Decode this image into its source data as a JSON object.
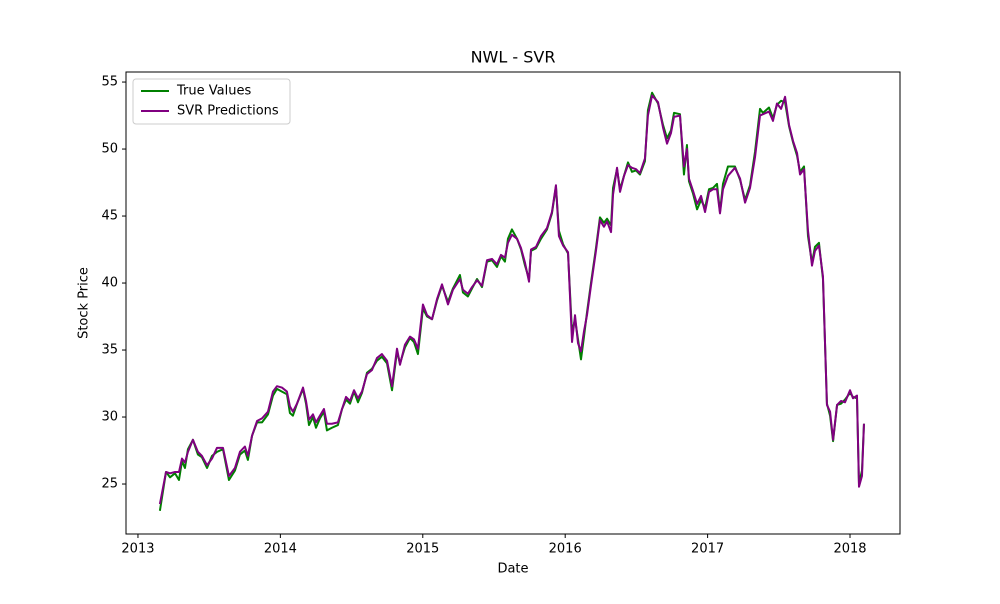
{
  "chart_data": {
    "type": "line",
    "title": "NWL - SVR",
    "x_label": "Date",
    "y_label": "Stock Price",
    "x": [
      2013.154,
      2013.197,
      2013.225,
      2013.26,
      2013.288,
      2013.309,
      2013.33,
      2013.351,
      2013.386,
      2013.421,
      2013.449,
      2013.485,
      2013.52,
      2013.555,
      2013.597,
      2013.639,
      2013.681,
      2013.716,
      2013.751,
      2013.772,
      2013.801,
      2013.836,
      2013.871,
      2013.913,
      2013.948,
      2013.976,
      2014.011,
      2014.046,
      2014.067,
      2014.088,
      2014.117,
      2014.159,
      2014.18,
      2014.201,
      2014.229,
      2014.25,
      2014.278,
      2014.306,
      2014.327,
      2014.362,
      2014.404,
      2014.433,
      2014.461,
      2014.489,
      2014.517,
      2014.545,
      2014.573,
      2014.608,
      2014.643,
      2014.678,
      2014.713,
      2014.749,
      2014.784,
      2014.819,
      2014.84,
      2014.875,
      2014.91,
      2014.938,
      2014.966,
      2015.001,
      2015.03,
      2015.065,
      2015.1,
      2015.135,
      2015.177,
      2015.212,
      2015.261,
      2015.282,
      2015.317,
      2015.346,
      2015.381,
      2015.416,
      2015.451,
      2015.486,
      2015.521,
      2015.549,
      2015.577,
      2015.598,
      2015.626,
      2015.662,
      2015.69,
      2015.718,
      2015.746,
      2015.76,
      2015.795,
      2015.83,
      2015.872,
      2015.907,
      2015.935,
      2015.956,
      2015.985,
      2016.02,
      2016.048,
      2016.069,
      2016.09,
      2016.111,
      2016.132,
      2016.153,
      2016.181,
      2016.216,
      2016.244,
      2016.272,
      2016.294,
      2016.322,
      2016.336,
      2016.364,
      2016.385,
      2016.413,
      2016.441,
      2016.469,
      2016.497,
      2016.525,
      2016.56,
      2016.581,
      2016.61,
      2016.652,
      2016.687,
      2016.715,
      2016.743,
      2016.764,
      2016.806,
      2016.834,
      2016.855,
      2016.869,
      2016.897,
      2016.926,
      2016.954,
      2016.982,
      2017.01,
      2017.038,
      2017.066,
      2017.087,
      2017.108,
      2017.143,
      2017.192,
      2017.228,
      2017.263,
      2017.298,
      2017.333,
      2017.368,
      2017.389,
      2017.431,
      2017.459,
      2017.487,
      2017.516,
      2017.544,
      2017.572,
      2017.6,
      2017.628,
      2017.649,
      2017.677,
      2017.705,
      2017.733,
      2017.754,
      2017.782,
      2017.81,
      2017.838,
      2017.86,
      2017.881,
      2017.909,
      2017.937,
      2017.965,
      2018.0,
      2018.021,
      2018.049,
      2018.063,
      2018.084,
      2018.098
    ],
    "series": [
      {
        "name": "True Values",
        "color": "#008000",
        "values": [
          23.0,
          25.9,
          25.5,
          25.8,
          25.3,
          26.7,
          26.2,
          27.6,
          28.3,
          27.2,
          27.0,
          26.2,
          27.1,
          27.4,
          27.6,
          25.3,
          26.0,
          27.2,
          27.5,
          26.8,
          28.6,
          29.6,
          29.6,
          30.2,
          31.6,
          32.1,
          31.9,
          31.7,
          30.3,
          30.1,
          31.0,
          32.1,
          31.0,
          29.4,
          30.0,
          29.2,
          29.9,
          30.4,
          29.0,
          29.2,
          29.4,
          30.6,
          31.3,
          31.0,
          31.9,
          31.1,
          31.8,
          33.3,
          33.6,
          34.2,
          34.5,
          34.0,
          32.0,
          34.9,
          34.0,
          35.2,
          35.9,
          35.6,
          34.7,
          38.1,
          37.5,
          37.3,
          38.7,
          39.8,
          38.6,
          39.6,
          40.6,
          39.3,
          39.0,
          39.6,
          40.3,
          39.7,
          41.6,
          41.7,
          41.2,
          42.0,
          41.6,
          43.3,
          44.0,
          43.3,
          42.5,
          41.3,
          40.3,
          42.4,
          42.6,
          43.3,
          44.0,
          45.2,
          47.2,
          43.9,
          42.9,
          42.2,
          36.3,
          37.3,
          35.8,
          34.3,
          36.0,
          37.8,
          40.0,
          42.6,
          44.9,
          44.5,
          44.8,
          44.3,
          47.1,
          48.5,
          47.0,
          48.0,
          49.0,
          48.3,
          48.4,
          48.1,
          49.1,
          52.9,
          54.2,
          53.4,
          51.8,
          50.8,
          51.4,
          52.7,
          52.6,
          48.1,
          50.3,
          47.6,
          46.7,
          45.5,
          46.2,
          45.6,
          47.0,
          47.1,
          47.4,
          45.3,
          47.4,
          48.7,
          48.7,
          47.7,
          46.2,
          47.3,
          49.8,
          53.0,
          52.7,
          53.1,
          52.3,
          53.3,
          53.6,
          53.5,
          51.7,
          50.5,
          49.5,
          48.3,
          48.7,
          43.5,
          41.5,
          42.7,
          43.0,
          40.3,
          31.0,
          30.1,
          28.2,
          30.9,
          31.0,
          31.3,
          31.8,
          31.5,
          31.4,
          25.0,
          26.0,
          29.5
        ]
      },
      {
        "name": "SVR Predictions",
        "color": "#800080",
        "values": [
          23.5,
          25.9,
          25.8,
          25.9,
          25.9,
          26.9,
          26.6,
          27.4,
          28.3,
          27.4,
          27.1,
          26.4,
          26.9,
          27.7,
          27.7,
          25.6,
          26.2,
          27.4,
          27.8,
          27.1,
          28.6,
          29.7,
          29.9,
          30.4,
          31.9,
          32.3,
          32.2,
          31.9,
          30.8,
          30.4,
          31.0,
          32.2,
          31.2,
          29.8,
          30.2,
          29.6,
          30.1,
          30.6,
          29.5,
          29.5,
          29.6,
          30.6,
          31.5,
          31.2,
          32.0,
          31.4,
          31.9,
          33.2,
          33.5,
          34.4,
          34.7,
          34.2,
          32.3,
          35.1,
          33.9,
          35.4,
          36.0,
          35.8,
          35.1,
          38.4,
          37.6,
          37.3,
          38.8,
          39.9,
          38.4,
          39.5,
          40.3,
          39.5,
          39.2,
          39.7,
          40.2,
          39.8,
          41.7,
          41.8,
          41.4,
          42.1,
          41.9,
          43.0,
          43.6,
          43.3,
          42.6,
          41.5,
          40.1,
          42.5,
          42.7,
          43.5,
          44.1,
          45.3,
          47.3,
          43.5,
          42.8,
          42.3,
          35.6,
          37.6,
          35.5,
          34.9,
          36.4,
          37.6,
          39.8,
          42.4,
          44.7,
          44.2,
          44.6,
          43.8,
          46.6,
          48.6,
          46.8,
          48.0,
          48.8,
          48.6,
          48.5,
          48.2,
          49.3,
          52.5,
          54.0,
          53.5,
          51.6,
          50.4,
          51.2,
          52.4,
          52.5,
          48.7,
          50.0,
          47.8,
          46.9,
          45.9,
          46.5,
          45.3,
          46.8,
          47.0,
          47.0,
          45.2,
          47.0,
          48.0,
          48.6,
          47.8,
          46.0,
          47.1,
          49.4,
          52.5,
          52.6,
          52.8,
          52.1,
          53.4,
          53.0,
          53.9,
          51.8,
          50.6,
          49.7,
          48.1,
          48.5,
          43.9,
          41.3,
          42.4,
          42.8,
          40.5,
          30.9,
          30.4,
          28.3,
          30.9,
          31.2,
          31.1,
          32.0,
          31.4,
          31.6,
          24.8,
          25.6,
          29.5
        ]
      }
    ],
    "xlim": [
      2012.916,
      2018.351
    ],
    "ylim": [
      21.27,
      55.75
    ],
    "xticks": [
      2013,
      2014,
      2015,
      2016,
      2017,
      2018
    ],
    "yticks": [
      25,
      30,
      35,
      40,
      45,
      50,
      55
    ],
    "grid": false,
    "legend": "upper left"
  }
}
